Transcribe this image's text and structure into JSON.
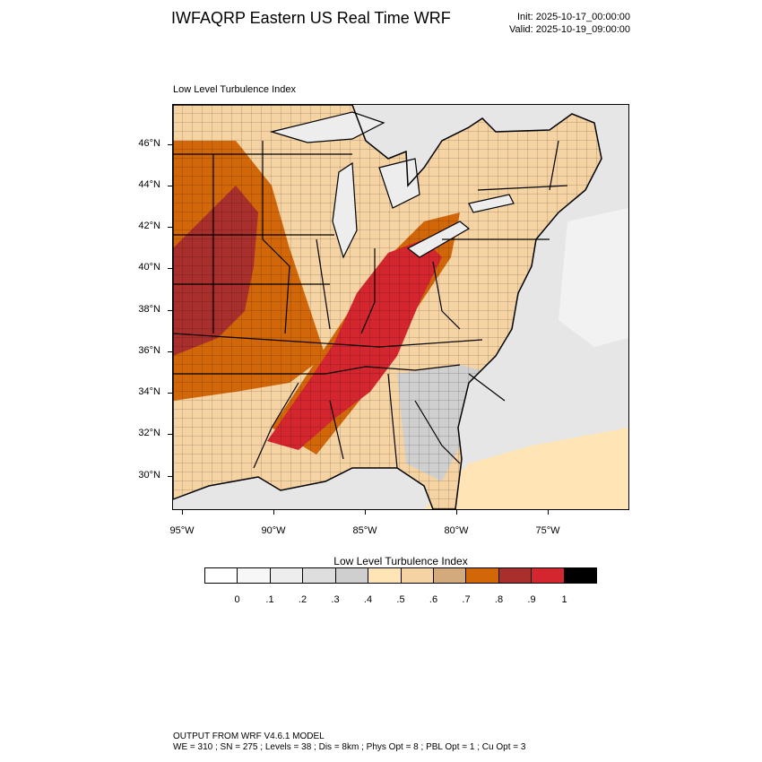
{
  "header": {
    "title": "IWFAQRP Eastern US Real Time WRF",
    "init": "Init: 2025-10-17_00:00:00",
    "valid": "Valid: 2025-10-19_09:00:00"
  },
  "map": {
    "subtitle": "Low Level Turbulence Index",
    "lat_labels": [
      "46°N",
      "44°N",
      "42°N",
      "40°N",
      "38°N",
      "36°N",
      "34°N",
      "32°N",
      "30°N"
    ],
    "lon_labels": [
      "95°W",
      "90°W",
      "85°W",
      "80°W",
      "75°W"
    ],
    "field_regions": [
      {
        "name": "background-ocean",
        "level": 0.2
      },
      {
        "name": "great-lakes",
        "level": 0.1
      },
      {
        "name": "plains-band",
        "level": 0.7
      },
      {
        "name": "missouri-max",
        "level": 0.8
      },
      {
        "name": "ohio-valley-band",
        "level": 0.7
      },
      {
        "name": "ohio-tennessee-max",
        "level": 0.9
      },
      {
        "name": "southeast-light",
        "level": 0.3
      },
      {
        "name": "gulf-coast",
        "level": 0.5
      }
    ]
  },
  "colorbar": {
    "title": "Low Level Turbulence Index",
    "colors": [
      "#ffffff",
      "#f7f7f7",
      "#ededed",
      "#dedede",
      "#cfcfcf",
      "#ffe4b5",
      "#f5d3a3",
      "#d2aa7c",
      "#d2670a",
      "#a82f2c",
      "#d3262f",
      "#000000"
    ],
    "labels": [
      "0",
      ".1",
      ".2",
      ".3",
      ".4",
      ".5",
      ".6",
      ".7",
      ".8",
      ".9",
      "1"
    ]
  },
  "footer": {
    "line1": "OUTPUT FROM WRF V4.6.1 MODEL",
    "line2": "WE = 310 ; SN = 275 ; Levels = 38 ; Dis = 8km ; Phys Opt = 8 ; PBL Opt = 1 ; Cu Opt = 3"
  }
}
